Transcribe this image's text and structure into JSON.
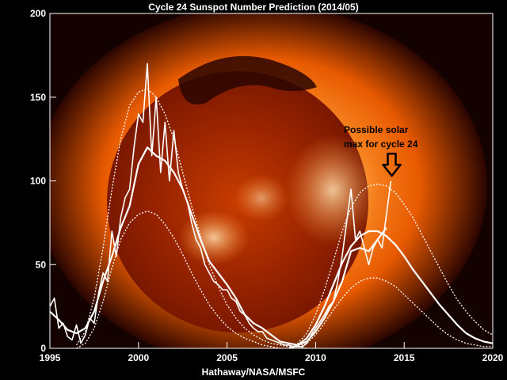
{
  "chart_data": {
    "type": "line",
    "title": "Cycle 24 Sunspot Number Prediction (2014/05)",
    "xlabel": "Hathaway/NASA/MSFC",
    "ylabel": "",
    "xlim": [
      1995,
      2020
    ],
    "ylim": [
      0,
      200
    ],
    "x_ticks": [
      "1995",
      "2000",
      "2005",
      "2010",
      "2015",
      "2020"
    ],
    "y_ticks": [
      "0",
      "50",
      "100",
      "150",
      "200"
    ],
    "grid": false,
    "background": "solar corona image",
    "annotation": {
      "text_lines": [
        "Possible solar",
        "max for cycle 24"
      ],
      "x": 2014.3,
      "y": 103,
      "color": "#000000"
    },
    "series": [
      {
        "style": "monthly-observed",
        "color": "#ffffff",
        "x": [
          1995.0,
          1995.25,
          1995.5,
          1995.75,
          1996.0,
          1996.25,
          1996.5,
          1996.75,
          1997.0,
          1997.25,
          1997.5,
          1997.75,
          1998.0,
          1998.25,
          1998.5,
          1998.75,
          1999.0,
          1999.25,
          1999.5,
          1999.75,
          2000.0,
          2000.25,
          2000.5,
          2000.75,
          2001.0,
          2001.25,
          2001.5,
          2001.75,
          2002.0,
          2002.25,
          2002.5,
          2002.75,
          2003.0,
          2003.25,
          2003.5,
          2003.75,
          2004.0,
          2004.25,
          2004.5,
          2004.75,
          2005.0,
          2005.25,
          2005.5,
          2005.75,
          2006.0,
          2006.25,
          2006.5,
          2006.75,
          2007.0,
          2007.25,
          2007.5,
          2007.75,
          2008.0,
          2008.25,
          2008.5,
          2008.75,
          2009.0,
          2009.25,
          2009.5,
          2009.75,
          2010.0,
          2010.25,
          2010.5,
          2010.75,
          2011.0,
          2011.25,
          2011.5,
          2011.75,
          2012.0,
          2012.25,
          2012.5,
          2012.75,
          2013.0,
          2013.25,
          2013.5,
          2013.75,
          2014.0,
          2014.25
        ],
        "y": [
          25,
          30,
          12,
          15,
          7,
          5,
          14,
          3,
          8,
          18,
          15,
          33,
          45,
          40,
          70,
          55,
          78,
          90,
          95,
          120,
          140,
          135,
          170,
          115,
          150,
          105,
          135,
          100,
          130,
          105,
          95,
          88,
          75,
          65,
          60,
          50,
          45,
          40,
          38,
          35,
          35,
          30,
          28,
          22,
          20,
          15,
          12,
          10,
          10,
          6,
          5,
          4,
          3,
          2,
          2,
          1,
          1,
          1,
          3,
          8,
          12,
          16,
          20,
          25,
          28,
          40,
          55,
          75,
          95,
          65,
          70,
          60,
          50,
          60,
          65,
          60,
          80,
          100
        ]
      },
      {
        "style": "smoothed-observed",
        "color": "#ffffff",
        "x": [
          1995.0,
          1995.5,
          1996.0,
          1996.5,
          1997.0,
          1997.5,
          1998.0,
          1998.5,
          1999.0,
          1999.5,
          2000.0,
          2000.5,
          2001.0,
          2001.5,
          2002.0,
          2002.5,
          2003.0,
          2003.5,
          2004.0,
          2004.5,
          2005.0,
          2005.5,
          2006.0,
          2006.5,
          2007.0,
          2007.5,
          2008.0,
          2008.5,
          2009.0,
          2009.5,
          2010.0,
          2010.5,
          2011.0,
          2011.5,
          2012.0,
          2012.5,
          2013.0,
          2013.5,
          2014.0
        ],
        "y": [
          22,
          17,
          11,
          9,
          12,
          22,
          40,
          55,
          72,
          85,
          110,
          120,
          115,
          112,
          105,
          95,
          80,
          65,
          52,
          45,
          38,
          30,
          20,
          15,
          12,
          8,
          4,
          3,
          2,
          4,
          10,
          18,
          28,
          40,
          58,
          60,
          58,
          65,
          72
        ]
      },
      {
        "style": "predicted",
        "color": "#ffffff",
        "x": [
          2008.5,
          2009.0,
          2009.5,
          2010.0,
          2010.5,
          2011.0,
          2011.5,
          2012.0,
          2012.5,
          2013.0,
          2013.5,
          2014.0,
          2014.5,
          2015.0,
          2015.5,
          2016.0,
          2016.5,
          2017.0,
          2017.5,
          2018.0,
          2018.5,
          2019.0,
          2019.5,
          2020.0
        ],
        "y": [
          0,
          2,
          6,
          14,
          25,
          38,
          51,
          61,
          67,
          70,
          70,
          67,
          62,
          55,
          47,
          40,
          33,
          26,
          20,
          14,
          9,
          6,
          4,
          3
        ]
      },
      {
        "style": "prediction-upper",
        "color": "#ffffff",
        "x": [
          2008.5,
          2009.0,
          2009.5,
          2010.0,
          2010.5,
          2011.0,
          2011.5,
          2012.0,
          2012.5,
          2013.0,
          2013.5,
          2014.0,
          2014.5,
          2015.0,
          2015.5,
          2016.0,
          2016.5,
          2017.0,
          2017.5,
          2018.0,
          2018.5,
          2019.0,
          2019.5,
          2020.0
        ],
        "y": [
          0,
          3,
          9,
          20,
          35,
          52,
          70,
          84,
          93,
          97,
          98,
          97,
          93,
          86,
          78,
          68,
          58,
          48,
          38,
          29,
          22,
          16,
          11,
          8
        ]
      },
      {
        "style": "prediction-lower",
        "color": "#ffffff",
        "x": [
          2008.5,
          2009.0,
          2009.5,
          2010.0,
          2010.5,
          2011.0,
          2011.5,
          2012.0,
          2012.5,
          2013.0,
          2013.5,
          2014.0,
          2014.5,
          2015.0,
          2015.5,
          2016.0,
          2016.5,
          2017.0,
          2017.5,
          2018.0,
          2018.5,
          2019.0,
          2019.5,
          2020.0
        ],
        "y": [
          0,
          1,
          3,
          8,
          15,
          23,
          30,
          36,
          40,
          42,
          42,
          40,
          37,
          32,
          27,
          22,
          17,
          12,
          8,
          5,
          3,
          2,
          1,
          1
        ]
      },
      {
        "style": "cycle23-upper",
        "color": "#ffffff",
        "x": [
          1996.5,
          1997.0,
          1997.5,
          1998.0,
          1998.5,
          1999.0,
          1999.5,
          2000.0,
          2000.5,
          2001.0,
          2001.5,
          2002.0,
          2002.5,
          2003.0,
          2003.5,
          2004.0,
          2004.5,
          2005.0,
          2005.5,
          2006.0,
          2006.5,
          2007.0,
          2007.5,
          2008.0,
          2008.5,
          2009.0,
          2009.5
        ],
        "y": [
          2,
          10,
          30,
          60,
          95,
          125,
          145,
          153,
          155,
          150,
          140,
          125,
          105,
          85,
          67,
          50,
          37,
          26,
          18,
          12,
          8,
          5,
          3,
          2,
          1,
          1,
          0
        ]
      },
      {
        "style": "cycle23-lower",
        "color": "#ffffff",
        "x": [
          1996.5,
          1997.0,
          1997.5,
          1998.0,
          1998.5,
          1999.0,
          1999.5,
          2000.0,
          2000.5,
          2001.0,
          2001.5,
          2002.0,
          2002.5,
          2003.0,
          2003.5,
          2004.0,
          2004.5,
          2005.0,
          2005.5,
          2006.0,
          2006.5,
          2007.0,
          2007.5,
          2008.0
        ],
        "y": [
          0,
          3,
          12,
          28,
          48,
          65,
          75,
          80,
          82,
          80,
          74,
          66,
          56,
          45,
          35,
          26,
          19,
          13,
          9,
          6,
          4,
          2,
          1,
          0
        ]
      }
    ]
  }
}
